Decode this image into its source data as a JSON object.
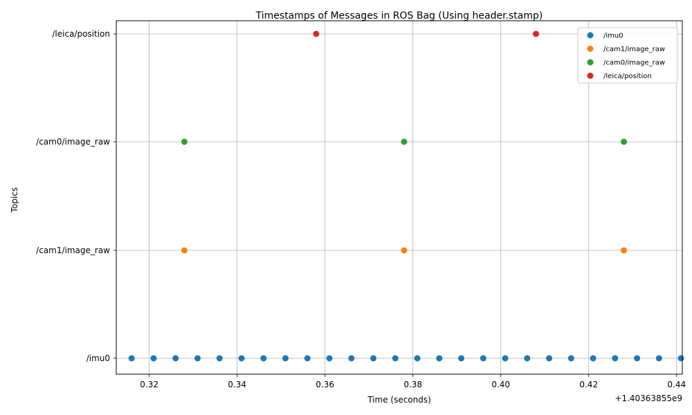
{
  "chart_data": {
    "type": "scatter",
    "title": "Timestamps of Messages in ROS Bag (Using header.stamp)",
    "xlabel": "Time (seconds)",
    "ylabel": "Topics",
    "x_offset_label": "+1.40363855e9",
    "xlim": [
      0.3125,
      0.4413
    ],
    "x_ticks": [
      0.32,
      0.34,
      0.36,
      0.38,
      0.4,
      0.42,
      0.44
    ],
    "x_tick_labels": [
      "0.32",
      "0.34",
      "0.36",
      "0.38",
      "0.40",
      "0.42",
      "0.44"
    ],
    "categories": [
      "/imu0",
      "/cam1/image_raw",
      "/cam0/image_raw",
      "/leica/position"
    ],
    "grid": true,
    "legend_position": "top-right",
    "series": [
      {
        "name": "/imu0",
        "color": "#1f77b4",
        "category": "/imu0",
        "x": [
          0.316,
          0.321,
          0.326,
          0.331,
          0.336,
          0.341,
          0.346,
          0.351,
          0.356,
          0.361,
          0.366,
          0.371,
          0.376,
          0.381,
          0.386,
          0.391,
          0.396,
          0.401,
          0.406,
          0.411,
          0.416,
          0.421,
          0.426,
          0.431,
          0.436,
          0.441
        ]
      },
      {
        "name": "/cam1/image_raw",
        "color": "#ff7f0e",
        "category": "/cam1/image_raw",
        "x": [
          0.328,
          0.378,
          0.428
        ]
      },
      {
        "name": "/cam0/image_raw",
        "color": "#2ca02c",
        "category": "/cam0/image_raw",
        "x": [
          0.328,
          0.378,
          0.428
        ]
      },
      {
        "name": "/leica/position",
        "color": "#d62728",
        "category": "/leica/position",
        "x": [
          0.358,
          0.408
        ]
      }
    ]
  }
}
